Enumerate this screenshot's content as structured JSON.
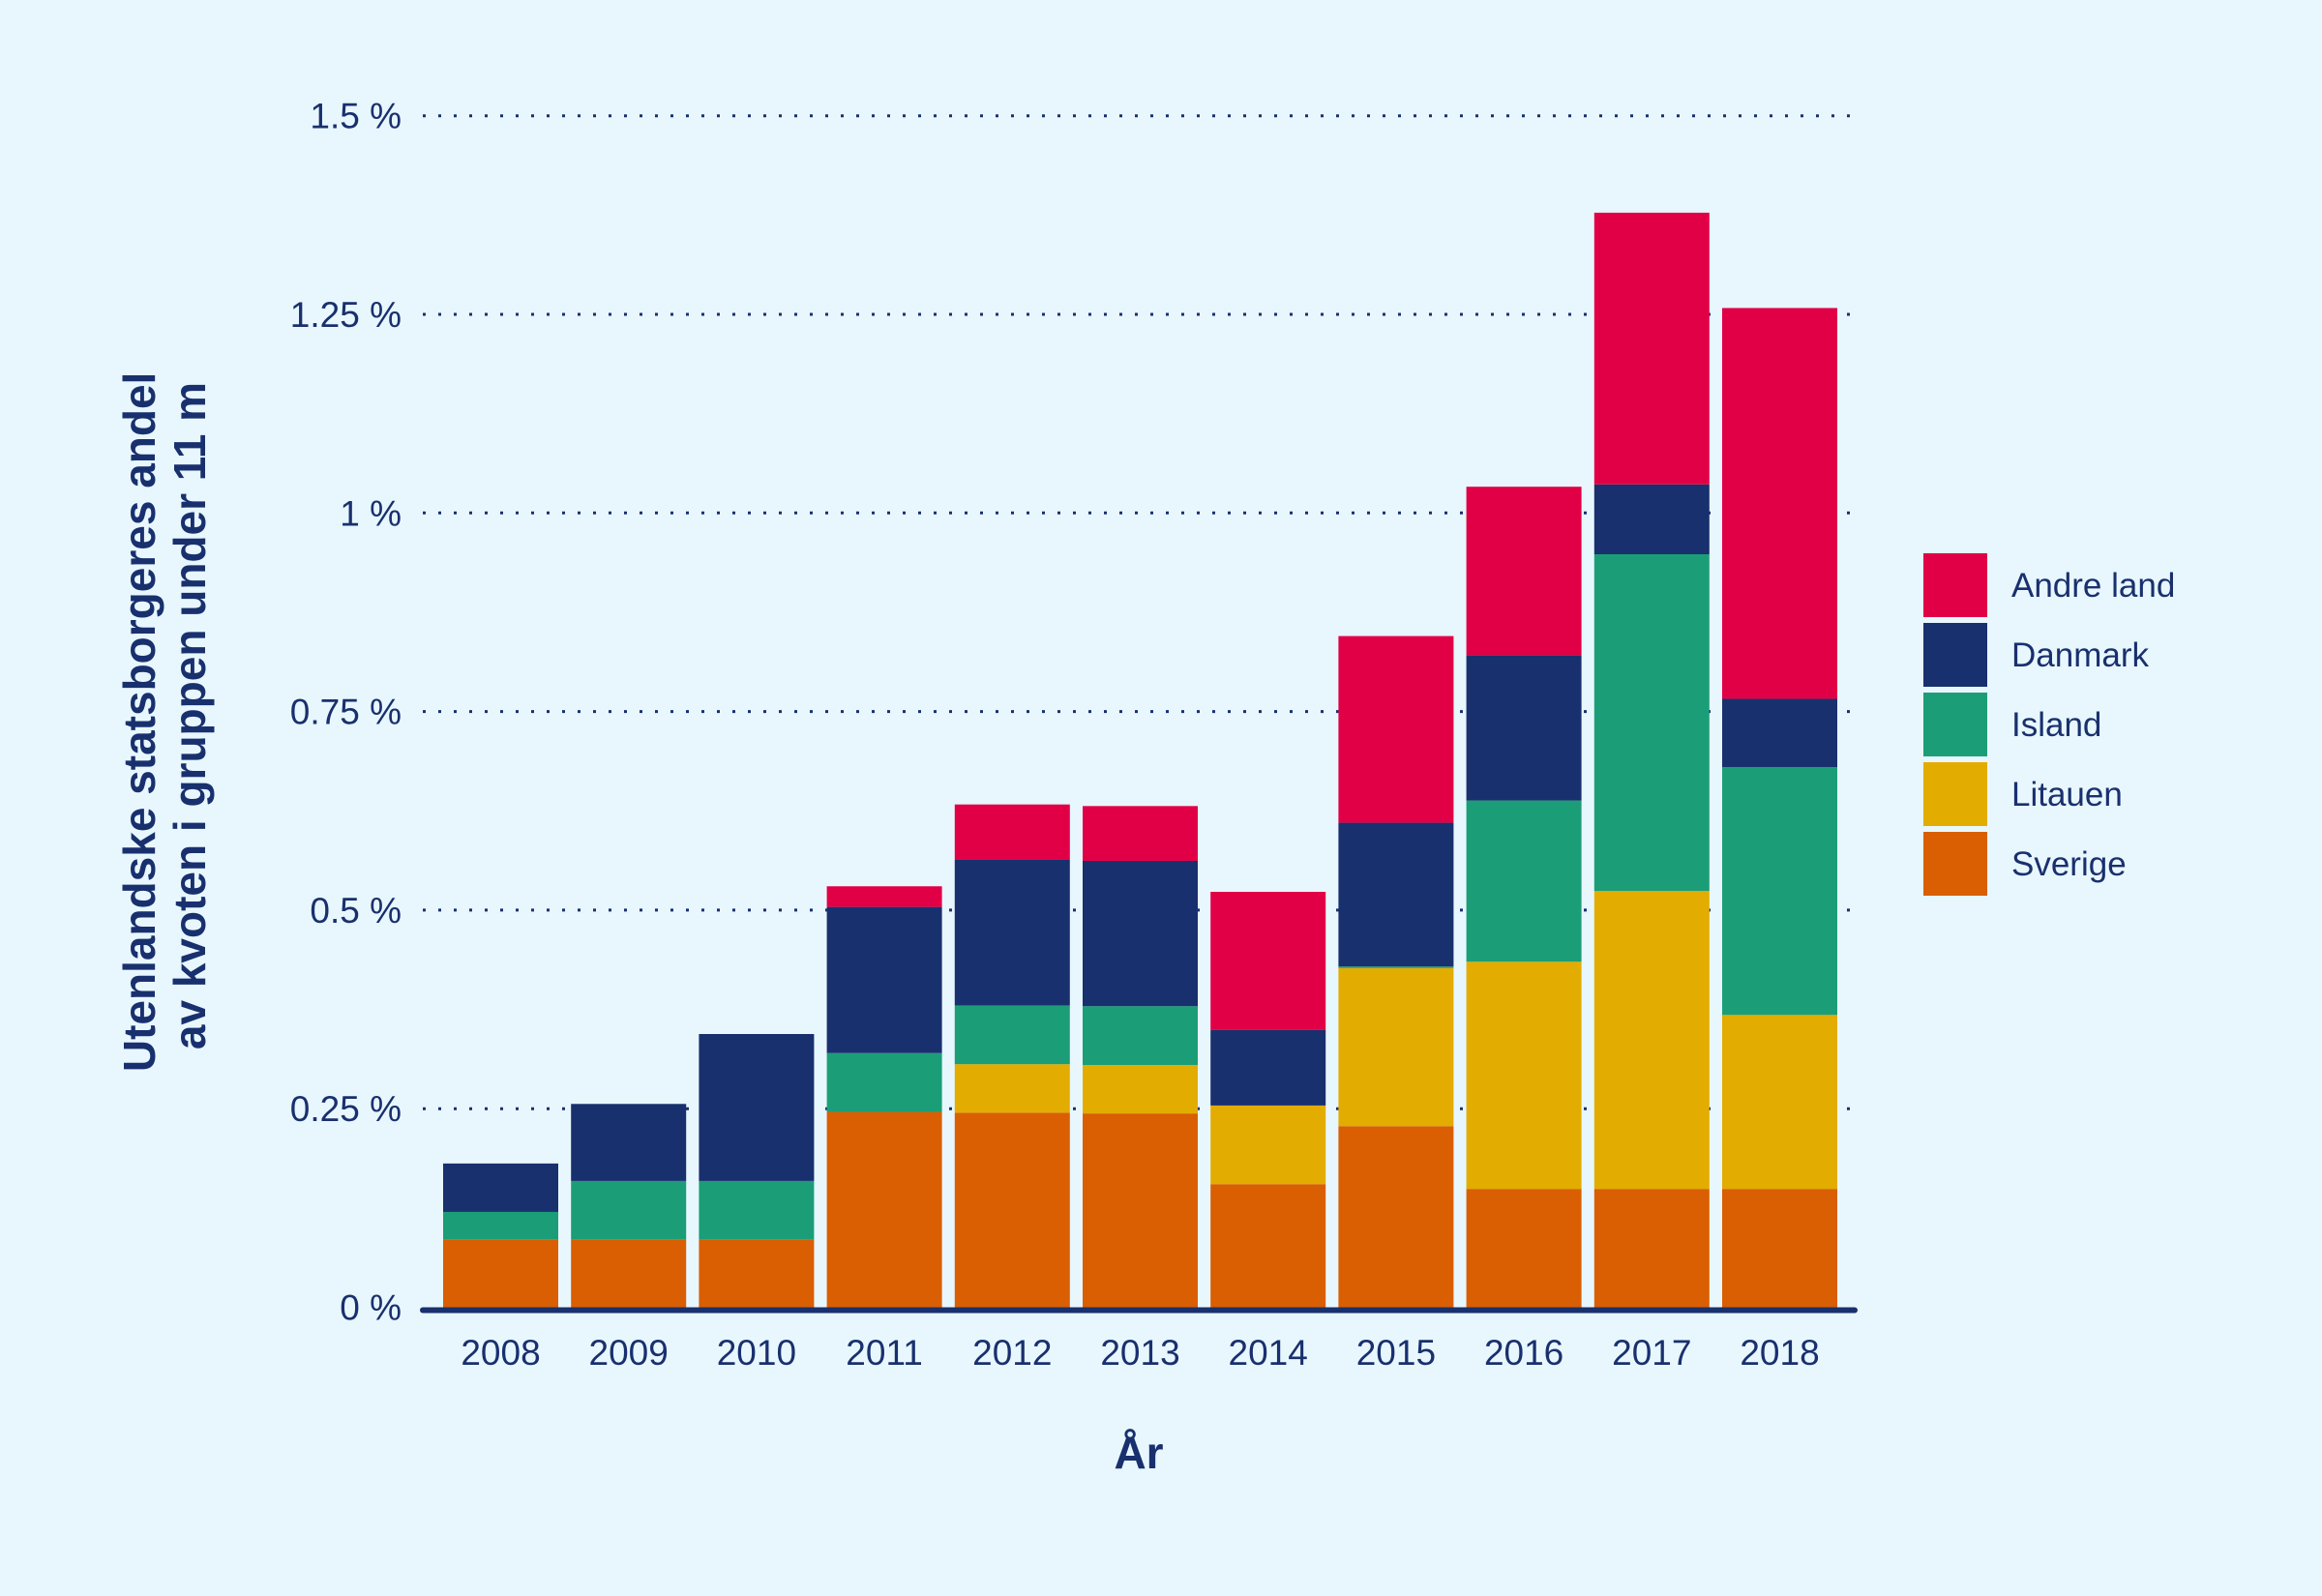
{
  "chart_data": {
    "type": "bar",
    "stacked": true,
    "title": "",
    "xlabel": "År",
    "ylabel_lines": [
      "Utenlandske statsborgeres andel",
      "av kvoten i gruppen under 11 m"
    ],
    "ylim": [
      0,
      1.5
    ],
    "yticks": [
      0,
      0.25,
      0.5,
      0.75,
      1,
      1.25,
      1.5
    ],
    "ytick_labels": [
      "0 %",
      "0.25 %",
      "0.5 %",
      "0.75 %",
      "1 %",
      "1.25 %",
      "1.5 %"
    ],
    "grid": "horizontal-dotted",
    "legend_position": "right",
    "categories": [
      "2008",
      "2009",
      "2010",
      "2011",
      "2012",
      "2013",
      "2014",
      "2015",
      "2016",
      "2017",
      "2018"
    ],
    "series": [
      {
        "name": "Sverige",
        "color": "#d95f02",
        "values": [
          0.085,
          0.085,
          0.085,
          0.246,
          0.245,
          0.244,
          0.155,
          0.228,
          0.149,
          0.149,
          0.149
        ]
      },
      {
        "name": "Litauen",
        "color": "#e3ac00",
        "values": [
          0,
          0,
          0,
          0,
          0.061,
          0.061,
          0.099,
          0.199,
          0.286,
          0.375,
          0.219
        ]
      },
      {
        "name": "Island",
        "color": "#1b9e77",
        "values": [
          0.035,
          0.074,
          0.074,
          0.074,
          0.074,
          0.074,
          0,
          0.002,
          0.203,
          0.424,
          0.312
        ]
      },
      {
        "name": "Danmark",
        "color": "#19306e",
        "values": [
          0.061,
          0.097,
          0.185,
          0.184,
          0.184,
          0.183,
          0.095,
          0.181,
          0.183,
          0.088,
          0.086
        ]
      },
      {
        "name": "Andre land",
        "color": "#e10046",
        "values": [
          0,
          0,
          0,
          0.026,
          0.069,
          0.069,
          0.174,
          0.235,
          0.212,
          0.342,
          0.492
        ]
      }
    ],
    "legend_order": [
      "Andre land",
      "Danmark",
      "Island",
      "Litauen",
      "Sverige"
    ]
  },
  "colors": {
    "background": "#e8f7fe",
    "text": "#19306e",
    "axis": "#19306e"
  }
}
